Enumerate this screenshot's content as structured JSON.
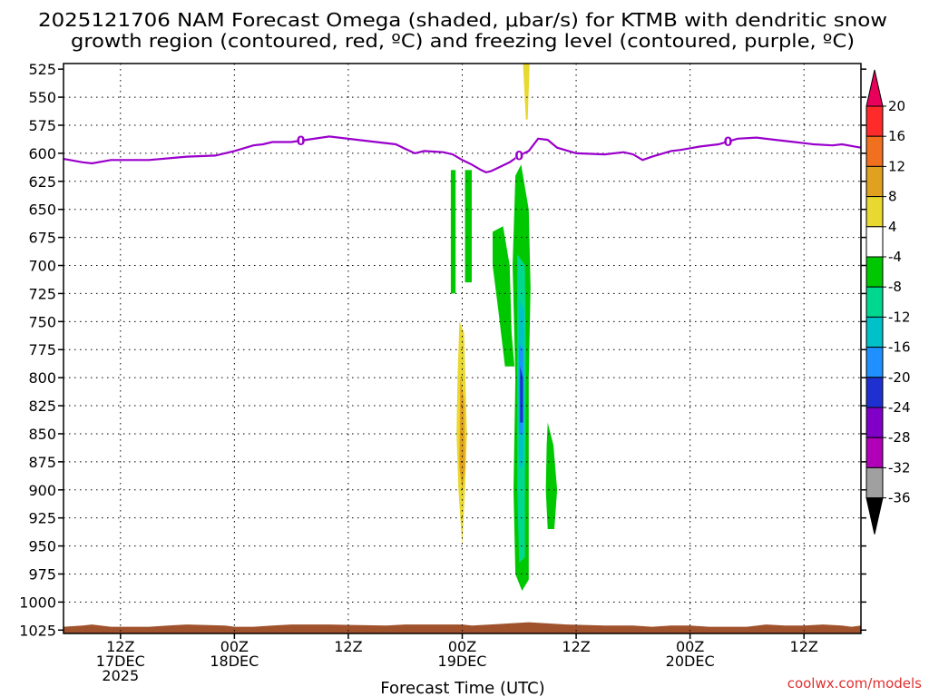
{
  "title_line1": "2025121706 NAM Forecast Omega (shaded, μbar/s) for KTMB with dendritic snow",
  "title_line2": "growth region (contoured, red, ºC) and freezing level (contoured, purple, ºC)",
  "credit": "coolwx.com/models",
  "chart_data": {
    "type": "time-height cross section",
    "xlabel": "Forecast Time (UTC)",
    "ylabel": "",
    "y_ticks": [
      525,
      550,
      575,
      600,
      625,
      650,
      675,
      700,
      725,
      750,
      775,
      800,
      825,
      850,
      875,
      900,
      925,
      950,
      975,
      1000,
      1025
    ],
    "y_range_hpa": [
      520,
      1028
    ],
    "x_range_hours": [
      0,
      84
    ],
    "x_ticks": [
      {
        "hour": 6,
        "lines": [
          "12Z",
          "17DEC",
          "2025"
        ]
      },
      {
        "hour": 18,
        "lines": [
          "00Z",
          "18DEC"
        ]
      },
      {
        "hour": 30,
        "lines": [
          "12Z"
        ]
      },
      {
        "hour": 42,
        "lines": [
          "00Z",
          "19DEC"
        ]
      },
      {
        "hour": 54,
        "lines": [
          "12Z"
        ]
      },
      {
        "hour": 66,
        "lines": [
          "00Z",
          "20DEC"
        ]
      },
      {
        "hour": 78,
        "lines": [
          "12Z"
        ]
      }
    ],
    "grid": "dotted",
    "colorbar": {
      "ticks": [
        "20",
        "16",
        "12",
        "8",
        "4",
        "-4",
        "-8",
        "-12",
        "-16",
        "-20",
        "-24",
        "-28",
        "-32",
        "-36"
      ],
      "bins": [
        {
          "color": "#e8005a"
        },
        {
          "color": "#ff2a2a"
        },
        {
          "color": "#f07020"
        },
        {
          "color": "#e0a020"
        },
        {
          "color": "#e8d830"
        },
        {
          "color": "#ffffff"
        },
        {
          "color": "#00c800"
        },
        {
          "color": "#00d890"
        },
        {
          "color": "#00c0c8"
        },
        {
          "color": "#1e90ff"
        },
        {
          "color": "#1e30d0"
        },
        {
          "color": "#8000c8"
        },
        {
          "color": "#b000b8"
        },
        {
          "color": "#a0a0a0"
        },
        {
          "color": "#000000"
        }
      ]
    },
    "freezing_level": {
      "label": "0",
      "label_hours": [
        25,
        48,
        70
      ],
      "hours": [
        0,
        2,
        3,
        5,
        9,
        13,
        16,
        18,
        20,
        21,
        22,
        24,
        28,
        31,
        35,
        36,
        37,
        38,
        40,
        41,
        42,
        43,
        44,
        44.5,
        45,
        46,
        47,
        48,
        49,
        50,
        51,
        52,
        54,
        57,
        59,
        60,
        61,
        62,
        64,
        65,
        67,
        69,
        71,
        73,
        75,
        77,
        79,
        81,
        82,
        84
      ],
      "hpa": [
        605,
        608,
        609,
        606,
        606,
        603,
        602,
        598,
        593,
        592,
        590,
        590,
        585,
        588,
        592,
        596,
        600,
        598,
        599,
        601,
        606,
        610,
        615,
        617,
        616,
        612,
        608,
        602,
        598,
        587,
        588,
        595,
        600,
        601,
        599,
        601,
        606,
        603,
        598,
        597,
        594,
        592,
        587,
        586,
        588,
        590,
        592,
        593,
        592,
        595
      ]
    },
    "omega_regions": [
      {
        "value": -6,
        "points": [
          [
            40.8,
            615
          ],
          [
            41.3,
            615
          ],
          [
            41.3,
            725
          ],
          [
            40.8,
            725
          ]
        ]
      },
      {
        "value": -6,
        "points": [
          [
            42.3,
            615
          ],
          [
            43.0,
            615
          ],
          [
            43.0,
            715
          ],
          [
            42.3,
            715
          ]
        ]
      },
      {
        "value": -6,
        "points": [
          [
            45.2,
            670
          ],
          [
            46.3,
            665
          ],
          [
            47.0,
            700
          ],
          [
            47.2,
            760
          ],
          [
            47.5,
            790
          ],
          [
            46.5,
            790
          ],
          [
            45.8,
            740
          ],
          [
            45.2,
            700
          ]
        ]
      },
      {
        "value": -6,
        "points": [
          [
            47.6,
            620
          ],
          [
            48.2,
            610
          ],
          [
            49.0,
            650
          ],
          [
            49.2,
            720
          ],
          [
            49.0,
            800
          ],
          [
            49.0,
            900
          ],
          [
            49.0,
            980
          ],
          [
            48.3,
            990
          ],
          [
            47.6,
            975
          ],
          [
            47.4,
            900
          ],
          [
            47.6,
            800
          ],
          [
            47.3,
            700
          ]
        ]
      },
      {
        "value": -10,
        "points": [
          [
            47.8,
            690
          ],
          [
            48.6,
            700
          ],
          [
            48.7,
            800
          ],
          [
            48.6,
            900
          ],
          [
            48.6,
            960
          ],
          [
            48.0,
            965
          ],
          [
            47.8,
            900
          ],
          [
            47.8,
            800
          ]
        ]
      },
      {
        "value": -14,
        "points": [
          [
            48.0,
            730
          ],
          [
            48.5,
            740
          ],
          [
            48.5,
            800
          ],
          [
            48.4,
            880
          ],
          [
            48.0,
            880
          ],
          [
            47.9,
            800
          ]
        ]
      },
      {
        "value": -18,
        "points": [
          [
            48.0,
            770
          ],
          [
            48.4,
            775
          ],
          [
            48.4,
            850
          ],
          [
            48.0,
            850
          ]
        ]
      },
      {
        "value": -22,
        "points": [
          [
            48.1,
            790
          ],
          [
            48.4,
            800
          ],
          [
            48.4,
            840
          ],
          [
            48.1,
            840
          ]
        ]
      },
      {
        "value": -6,
        "points": [
          [
            51.0,
            840
          ],
          [
            51.6,
            860
          ],
          [
            52.0,
            900
          ],
          [
            51.7,
            935
          ],
          [
            51.0,
            935
          ],
          [
            50.8,
            900
          ],
          [
            50.9,
            860
          ]
        ]
      },
      {
        "value": 6,
        "points": [
          [
            41.7,
            750
          ],
          [
            42.2,
            760
          ],
          [
            42.5,
            850
          ],
          [
            42.3,
            900
          ],
          [
            42.0,
            950
          ],
          [
            41.6,
            900
          ],
          [
            41.4,
            850
          ],
          [
            41.5,
            800
          ]
        ]
      },
      {
        "value": 10,
        "points": [
          [
            41.8,
            800
          ],
          [
            42.2,
            820
          ],
          [
            42.3,
            880
          ],
          [
            42.0,
            900
          ],
          [
            41.7,
            880
          ]
        ]
      },
      {
        "value": 6,
        "points": [
          [
            48.4,
            520
          ],
          [
            49.1,
            520
          ],
          [
            48.9,
            570
          ],
          [
            48.7,
            570
          ]
        ]
      }
    ],
    "terrain": {
      "hours": [
        0,
        2,
        3,
        5,
        9,
        11,
        13,
        17,
        18,
        20,
        22,
        24,
        28,
        34,
        36,
        38,
        40,
        42,
        43,
        45,
        47,
        49,
        51,
        53,
        57,
        60,
        62,
        64,
        66,
        68,
        72,
        74,
        76,
        78,
        80,
        82,
        83,
        84
      ],
      "hpa": [
        1022,
        1021,
        1020,
        1022,
        1022,
        1021,
        1020,
        1021,
        1022,
        1022,
        1021,
        1020,
        1020,
        1021,
        1020,
        1020,
        1020,
        1020,
        1021,
        1020,
        1019,
        1018,
        1019,
        1020,
        1021,
        1021,
        1022,
        1021,
        1021,
        1022,
        1022,
        1020,
        1021,
        1021,
        1020,
        1021,
        1022,
        1021
      ]
    }
  }
}
